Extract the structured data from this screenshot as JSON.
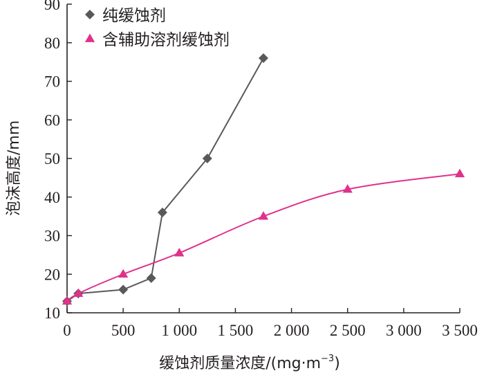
{
  "chart_data": {
    "type": "line",
    "xlabel": "缓蚀剂质量浓度/(mg·m",
    "xlabel_sup": "−3",
    "xlabel_close": ")",
    "ylabel": "泡沫高度/mm",
    "xlim": [
      0,
      3500
    ],
    "ylim": [
      10,
      90
    ],
    "x_ticks": [
      0,
      500,
      1000,
      1500,
      2000,
      2500,
      3000,
      3500
    ],
    "x_tick_labels": [
      "0",
      "500",
      "1 000",
      "1 500",
      "2 000",
      "2 500",
      "3 000",
      "3 500"
    ],
    "y_ticks": [
      10,
      20,
      30,
      40,
      50,
      60,
      70,
      80,
      90
    ],
    "y_tick_labels": [
      "10",
      "20",
      "30",
      "40",
      "50",
      "60",
      "70",
      "80",
      "90"
    ],
    "legend_position": "top-left",
    "series": [
      {
        "name": "纯缓蚀剂",
        "marker": "diamond",
        "color": "#58595b",
        "smooth": false,
        "x": [
          0,
          100,
          500,
          750,
          850,
          1250,
          1750
        ],
        "y": [
          13,
          15,
          16,
          19,
          36,
          50,
          76
        ]
      },
      {
        "name": "含辅助溶剂缓蚀剂",
        "marker": "triangle",
        "color": "#e0318b",
        "smooth": true,
        "x": [
          0,
          100,
          500,
          1000,
          1750,
          2500,
          3500
        ],
        "y": [
          13,
          15,
          20,
          25.5,
          35,
          42,
          46
        ]
      }
    ]
  }
}
